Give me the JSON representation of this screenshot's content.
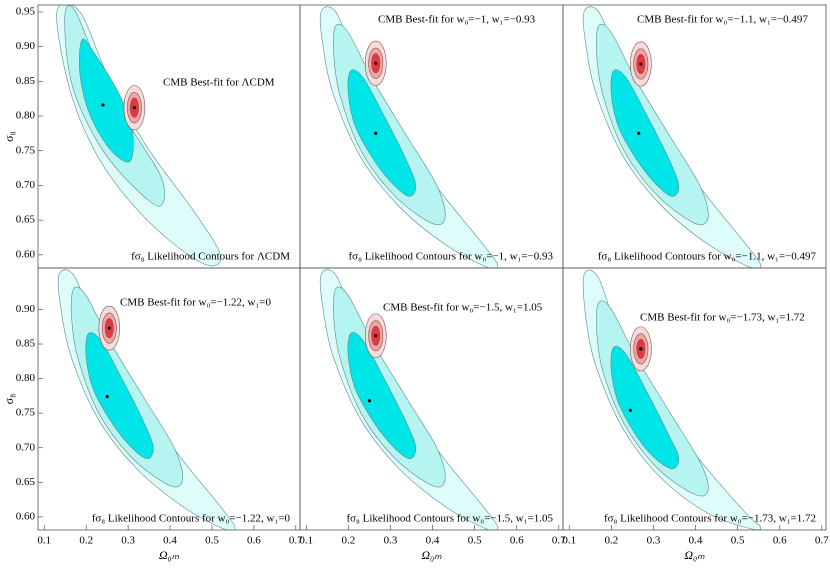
{
  "chart_data": [
    {
      "type": "contour",
      "xlim": [
        0.085,
        0.71
      ],
      "ylim": [
        0.581,
        0.96
      ],
      "yticks": [
        {
          "value": 0.6,
          "label": "0.60"
        },
        {
          "value": 0.65,
          "label": "0.65"
        },
        {
          "value": 0.7,
          "label": "0.70"
        },
        {
          "value": 0.75,
          "label": "0.75"
        },
        {
          "value": 0.8,
          "label": "0.80"
        },
        {
          "value": 0.85,
          "label": "0.85"
        },
        {
          "value": 0.9,
          "label": "0.90"
        },
        {
          "value": 0.95,
          "label": "0.95"
        }
      ],
      "ylabel": "σ₈",
      "cmb_label": "CMB Best-fit for ΛCDM",
      "likelihood_label": "fσ₈ Likelihood Contours for ΛCDM",
      "likelihood": {
        "colors": [
          "#defcfa",
          "#b6f4f1",
          "#00e6e8"
        ],
        "best_fit": {
          "x": 0.24,
          "y": 0.816
        },
        "regions": [
          {
            "x": [
              0.13,
              0.185,
              0.25,
              0.34,
              0.46,
              0.52,
              0.49,
              0.4,
              0.3,
              0.22,
              0.16
            ],
            "y": [
              0.95,
              0.95,
              0.86,
              0.76,
              0.66,
              0.6,
              0.585,
              0.62,
              0.68,
              0.75,
              0.84
            ]
          },
          {
            "x": [
              0.15,
              0.175,
              0.23,
              0.3,
              0.38,
              0.375,
              0.31,
              0.24,
              0.18,
              0.155
            ],
            "y": [
              0.95,
              0.95,
              0.87,
              0.79,
              0.71,
              0.67,
              0.7,
              0.75,
              0.82,
              0.88
            ]
          },
          {
            "x": [
              0.19,
              0.22,
              0.28,
              0.31,
              0.305,
              0.26,
              0.21,
              0.185
            ],
            "y": [
              0.91,
              0.89,
              0.83,
              0.78,
              0.735,
              0.75,
              0.8,
              0.86
            ]
          }
        ]
      },
      "cmb": {
        "colors": [
          "#f5dcdc",
          "#f0a4a4",
          "#e6383c"
        ],
        "best_fit": {
          "x": 0.315,
          "y": 0.812
        },
        "regions": [
          {
            "rx": 0.025,
            "ry": 0.032
          },
          {
            "rx": 0.017,
            "ry": 0.022
          },
          {
            "rx": 0.01,
            "ry": 0.014
          }
        ]
      }
    },
    {
      "type": "contour",
      "xlim": [
        0.085,
        0.71
      ],
      "ylim": [
        0.581,
        0.96
      ],
      "cmb_label": "CMB Best-fit for w₀=−1, w₁=−0.93",
      "likelihood_label": "fσ₈ Likelihood Contours for w₀=−1, w₁=−0.93",
      "likelihood": {
        "colors": [
          "#defcfa",
          "#b6f4f1",
          "#00e6e8"
        ],
        "best_fit": {
          "x": 0.265,
          "y": 0.775
        },
        "regions": [
          {
            "x": [
              0.135,
              0.17,
              0.22,
              0.3,
              0.42,
              0.52,
              0.555,
              0.53,
              0.43,
              0.32,
              0.23,
              0.165,
              0.14
            ],
            "y": [
              0.95,
              0.95,
              0.88,
              0.79,
              0.69,
              0.615,
              0.585,
              0.582,
              0.615,
              0.67,
              0.74,
              0.83,
              0.9
            ]
          },
          {
            "x": [
              0.17,
              0.2,
              0.26,
              0.34,
              0.41,
              0.43,
              0.4,
              0.31,
              0.23,
              0.18,
              0.165
            ],
            "y": [
              0.93,
              0.92,
              0.85,
              0.77,
              0.7,
              0.655,
              0.645,
              0.685,
              0.75,
              0.83,
              0.89
            ]
          },
          {
            "x": [
              0.205,
              0.235,
              0.285,
              0.335,
              0.36,
              0.34,
              0.28,
              0.22,
              0.2
            ],
            "y": [
              0.865,
              0.855,
              0.8,
              0.74,
              0.7,
              0.685,
              0.72,
              0.78,
              0.83
            ]
          }
        ]
      },
      "cmb": {
        "colors": [
          "#f5dcdc",
          "#f0a4a4",
          "#e6383c"
        ],
        "best_fit": {
          "x": 0.265,
          "y": 0.876
        },
        "regions": [
          {
            "rx": 0.025,
            "ry": 0.032
          },
          {
            "rx": 0.017,
            "ry": 0.022
          },
          {
            "rx": 0.01,
            "ry": 0.014
          }
        ]
      }
    },
    {
      "type": "contour",
      "xlim": [
        0.085,
        0.71
      ],
      "ylim": [
        0.581,
        0.96
      ],
      "cmb_label": "CMB Best-fit for w₀=−1.1, w₁=−0.497",
      "likelihood_label": "fσ₈ Likelihood Contours for w₀=−1.1, w₁=−0.497",
      "likelihood": {
        "colors": [
          "#defcfa",
          "#b6f4f1",
          "#00e6e8"
        ],
        "best_fit": {
          "x": 0.265,
          "y": 0.775
        },
        "regions": [
          {
            "x": [
              0.135,
              0.17,
              0.22,
              0.3,
              0.42,
              0.52,
              0.555,
              0.53,
              0.43,
              0.32,
              0.23,
              0.165,
              0.14
            ],
            "y": [
              0.95,
              0.95,
              0.88,
              0.79,
              0.69,
              0.615,
              0.585,
              0.582,
              0.615,
              0.67,
              0.74,
              0.83,
              0.9
            ]
          },
          {
            "x": [
              0.17,
              0.2,
              0.26,
              0.34,
              0.41,
              0.43,
              0.4,
              0.31,
              0.23,
              0.18,
              0.165
            ],
            "y": [
              0.93,
              0.92,
              0.85,
              0.77,
              0.7,
              0.655,
              0.645,
              0.685,
              0.75,
              0.83,
              0.89
            ]
          },
          {
            "x": [
              0.205,
              0.235,
              0.285,
              0.335,
              0.36,
              0.34,
              0.28,
              0.22,
              0.2
            ],
            "y": [
              0.865,
              0.855,
              0.8,
              0.74,
              0.7,
              0.685,
              0.72,
              0.78,
              0.83
            ]
          }
        ]
      },
      "cmb": {
        "colors": [
          "#f5dcdc",
          "#f0a4a4",
          "#e6383c"
        ],
        "best_fit": {
          "x": 0.27,
          "y": 0.875
        },
        "regions": [
          {
            "rx": 0.025,
            "ry": 0.032
          },
          {
            "rx": 0.017,
            "ry": 0.022
          },
          {
            "rx": 0.01,
            "ry": 0.014
          }
        ]
      }
    },
    {
      "type": "contour",
      "xlim": [
        0.085,
        0.71
      ],
      "ylim": [
        0.581,
        0.96
      ],
      "xticks": [
        0.1,
        0.2,
        0.3,
        0.4,
        0.5,
        0.6,
        0.7
      ],
      "yticks": [
        {
          "value": 0.6,
          "label": "0.60"
        },
        {
          "value": 0.65,
          "label": "0.65"
        },
        {
          "value": 0.7,
          "label": "0.70"
        },
        {
          "value": 0.75,
          "label": "0.75"
        },
        {
          "value": 0.8,
          "label": "0.80"
        },
        {
          "value": 0.85,
          "label": "0.85"
        },
        {
          "value": 0.9,
          "label": "0.90"
        }
      ],
      "xlabel": "Ω₀ₘ",
      "ylabel": "σ₈",
      "cmb_label": "CMB Best-fit for w₀=−1.22, w₁=0",
      "likelihood_label": "fσ₈ Likelihood Contours for w₀=−1.22, w₁=0",
      "likelihood": {
        "colors": [
          "#defcfa",
          "#b6f4f1",
          "#00e6e8"
        ],
        "best_fit": {
          "x": 0.25,
          "y": 0.774
        },
        "regions": [
          {
            "x": [
              0.135,
              0.17,
              0.22,
              0.3,
              0.42,
              0.52,
              0.555,
              0.53,
              0.43,
              0.32,
              0.23,
              0.165,
              0.14
            ],
            "y": [
              0.95,
              0.95,
              0.88,
              0.79,
              0.69,
              0.615,
              0.585,
              0.582,
              0.615,
              0.67,
              0.74,
              0.83,
              0.9
            ]
          },
          {
            "x": [
              0.17,
              0.2,
              0.26,
              0.34,
              0.41,
              0.43,
              0.4,
              0.31,
              0.23,
              0.18,
              0.165
            ],
            "y": [
              0.93,
              0.92,
              0.85,
              0.77,
              0.7,
              0.655,
              0.645,
              0.685,
              0.75,
              0.83,
              0.89
            ]
          },
          {
            "x": [
              0.205,
              0.235,
              0.285,
              0.335,
              0.36,
              0.34,
              0.28,
              0.22,
              0.2
            ],
            "y": [
              0.865,
              0.855,
              0.8,
              0.74,
              0.7,
              0.685,
              0.72,
              0.78,
              0.83
            ]
          }
        ]
      },
      "cmb": {
        "colors": [
          "#f5dcdc",
          "#f0a4a4",
          "#e6383c"
        ],
        "best_fit": {
          "x": 0.255,
          "y": 0.873
        },
        "regions": [
          {
            "rx": 0.025,
            "ry": 0.032
          },
          {
            "rx": 0.017,
            "ry": 0.022
          },
          {
            "rx": 0.01,
            "ry": 0.014
          }
        ]
      }
    },
    {
      "type": "contour",
      "xlim": [
        0.085,
        0.71
      ],
      "ylim": [
        0.581,
        0.96
      ],
      "xticks": [
        0.1,
        0.2,
        0.3,
        0.4,
        0.5,
        0.6,
        0.7
      ],
      "xlabel": "Ω₀ₘ",
      "cmb_label": "CMB Best-fit for w₀=−1.5, w₁=1.05",
      "likelihood_label": "fσ₈ Likelihood Contours for w₀=−1.5, w₁=1.05",
      "likelihood": {
        "colors": [
          "#defcfa",
          "#b6f4f1",
          "#00e6e8"
        ],
        "best_fit": {
          "x": 0.25,
          "y": 0.768
        },
        "regions": [
          {
            "x": [
              0.135,
              0.17,
              0.22,
              0.3,
              0.42,
              0.52,
              0.555,
              0.53,
              0.43,
              0.32,
              0.23,
              0.165,
              0.14
            ],
            "y": [
              0.95,
              0.95,
              0.88,
              0.79,
              0.69,
              0.615,
              0.585,
              0.582,
              0.615,
              0.67,
              0.74,
              0.83,
              0.9
            ]
          },
          {
            "x": [
              0.17,
              0.2,
              0.26,
              0.34,
              0.41,
              0.43,
              0.4,
              0.31,
              0.23,
              0.18,
              0.165
            ],
            "y": [
              0.93,
              0.92,
              0.85,
              0.77,
              0.7,
              0.655,
              0.645,
              0.685,
              0.75,
              0.83,
              0.89
            ]
          },
          {
            "x": [
              0.205,
              0.235,
              0.285,
              0.335,
              0.36,
              0.34,
              0.28,
              0.22,
              0.2
            ],
            "y": [
              0.865,
              0.855,
              0.8,
              0.74,
              0.7,
              0.685,
              0.72,
              0.78,
              0.83
            ]
          }
        ]
      },
      "cmb": {
        "colors": [
          "#f5dcdc",
          "#f0a4a4",
          "#e6383c"
        ],
        "best_fit": {
          "x": 0.265,
          "y": 0.862
        },
        "regions": [
          {
            "rx": 0.025,
            "ry": 0.032
          },
          {
            "rx": 0.017,
            "ry": 0.022
          },
          {
            "rx": 0.01,
            "ry": 0.014
          }
        ]
      }
    },
    {
      "type": "contour",
      "xlim": [
        0.085,
        0.71
      ],
      "ylim": [
        0.581,
        0.96
      ],
      "xticks": [
        0.1,
        0.2,
        0.3,
        0.4,
        0.5,
        0.6,
        0.7
      ],
      "xlabel": "Ω₀ₘ",
      "cmb_label": "CMB Best-fit for w₀=−1.73, w₁=1.72",
      "likelihood_label": "fσ₈ Likelihood Contours for w₀=−1.73, w₁=1.72",
      "likelihood": {
        "colors": [
          "#defcfa",
          "#b6f4f1",
          "#00e6e8"
        ],
        "best_fit": {
          "x": 0.245,
          "y": 0.754
        },
        "regions": [
          {
            "x": [
              0.135,
              0.17,
              0.22,
              0.3,
              0.42,
              0.52,
              0.555,
              0.53,
              0.43,
              0.32,
              0.23,
              0.165,
              0.14
            ],
            "y": [
              0.95,
              0.945,
              0.86,
              0.77,
              0.675,
              0.605,
              0.585,
              0.583,
              0.605,
              0.655,
              0.725,
              0.815,
              0.885
            ]
          },
          {
            "x": [
              0.17,
              0.2,
              0.26,
              0.34,
              0.41,
              0.43,
              0.4,
              0.31,
              0.23,
              0.18,
              0.165
            ],
            "y": [
              0.91,
              0.9,
              0.83,
              0.75,
              0.68,
              0.64,
              0.632,
              0.67,
              0.735,
              0.81,
              0.87
            ]
          },
          {
            "x": [
              0.205,
              0.235,
              0.285,
              0.335,
              0.36,
              0.34,
              0.28,
              0.22,
              0.2
            ],
            "y": [
              0.845,
              0.835,
              0.78,
              0.72,
              0.685,
              0.67,
              0.7,
              0.76,
              0.81
            ]
          }
        ]
      },
      "cmb": {
        "colors": [
          "#f5dcdc",
          "#f0a4a4",
          "#e6383c"
        ],
        "best_fit": {
          "x": 0.27,
          "y": 0.843
        },
        "regions": [
          {
            "rx": 0.025,
            "ry": 0.032
          },
          {
            "rx": 0.017,
            "ry": 0.022
          },
          {
            "rx": 0.01,
            "ry": 0.014
          }
        ]
      }
    }
  ]
}
